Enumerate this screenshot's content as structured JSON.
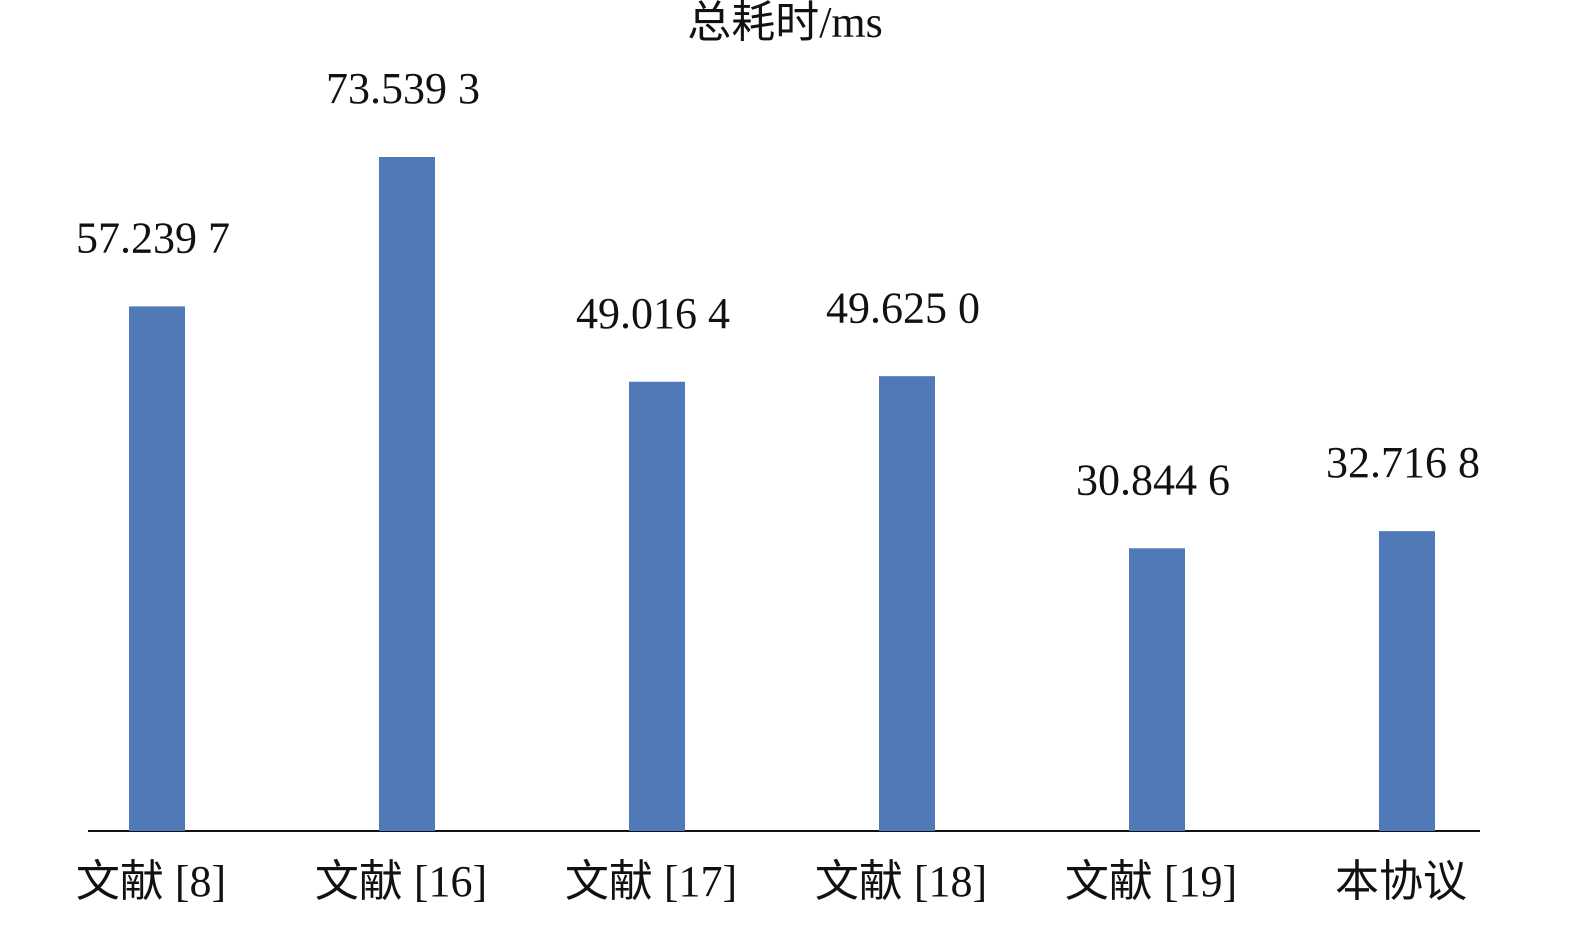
{
  "chart_data": {
    "type": "bar",
    "title": "总耗时/ms",
    "categories": [
      "文献 [8]",
      "文献 [16]",
      "文献 [17]",
      "文献 [18]",
      "文献 [19]",
      "本协议"
    ],
    "values": [
      57.2397,
      73.5393,
      49.0164,
      49.625,
      30.8446,
      32.7168
    ],
    "value_labels": [
      "57.239 7",
      "73.539 3",
      "49.016 4",
      "49.625 0",
      "30.844 6",
      "32.716 8"
    ],
    "color": "#5079b7"
  }
}
